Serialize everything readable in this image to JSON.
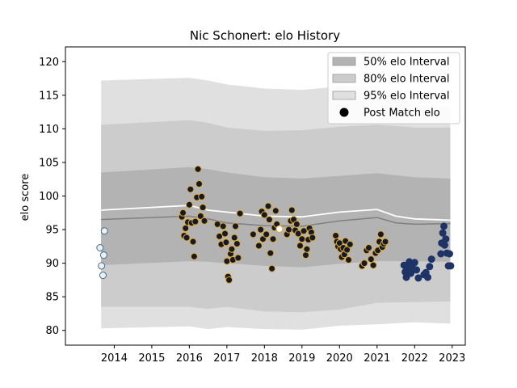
{
  "chart_data": {
    "type": "scatter",
    "title": "Nic Schonert: elo History",
    "xlabel": "",
    "ylabel": "elo score",
    "xlim": [
      2012.7,
      2023.35
    ],
    "ylim": [
      77.8,
      122.2
    ],
    "xticks": [
      2014,
      2015,
      2016,
      2017,
      2018,
      2019,
      2020,
      2021,
      2022,
      2023
    ],
    "yticks": [
      80,
      85,
      90,
      95,
      100,
      105,
      110,
      115,
      120
    ],
    "grid": false,
    "legend_position": "top-right",
    "legend": [
      {
        "label": "50% elo Interval",
        "kind": "patch",
        "color": "#b3b3b3"
      },
      {
        "label": "80% elo Interval",
        "kind": "patch",
        "color": "#cccccc"
      },
      {
        "label": "95% elo Interval",
        "kind": "patch",
        "color": "#e0e0e0"
      },
      {
        "label": "Post Match elo",
        "kind": "marker",
        "color": "#000000"
      }
    ],
    "bands": {
      "x": [
        2013.65,
        2016.0,
        2016.5,
        2017.0,
        2018.0,
        2019.0,
        2020.0,
        2021.0,
        2022.0,
        2022.95
      ],
      "p95_upper": [
        117.2,
        117.6,
        117.2,
        116.6,
        116.0,
        115.8,
        116.3,
        116.4,
        113.5,
        113.2
      ],
      "p80_upper": [
        110.6,
        111.3,
        110.9,
        110.2,
        109.7,
        109.8,
        110.3,
        110.6,
        110.2,
        110.2
      ],
      "p50_upper": [
        103.5,
        104.3,
        104.0,
        103.5,
        102.8,
        102.6,
        103.0,
        103.4,
        102.8,
        102.6
      ],
      "p50_lower": [
        89.7,
        90.3,
        90.2,
        90.0,
        89.6,
        89.4,
        89.9,
        90.3,
        90.3,
        90.2
      ],
      "p80_lower": [
        83.5,
        83.5,
        83.2,
        83.5,
        82.8,
        82.7,
        83.1,
        84.1,
        84.2,
        84.3
      ],
      "p95_lower": [
        80.3,
        80.6,
        80.2,
        80.5,
        80.2,
        80.1,
        80.7,
        80.9,
        81.2,
        81.0
      ]
    },
    "median_line": {
      "x": [
        2013.65,
        2016.0,
        2016.5,
        2017.0,
        2018.0,
        2019.0,
        2020.0,
        2021.0,
        2021.5,
        2022.0,
        2022.95
      ],
      "y": [
        96.5,
        97.0,
        96.6,
        96.0,
        95.6,
        95.5,
        96.3,
        96.8,
        96.0,
        95.8,
        95.9
      ],
      "color": "#808080"
    },
    "mean_line": {
      "x": [
        2013.65,
        2016.0,
        2016.5,
        2017.0,
        2018.0,
        2019.0,
        2020.0,
        2021.0,
        2021.5,
        2022.0,
        2022.95
      ],
      "y": [
        97.9,
        98.6,
        97.9,
        97.6,
        97.0,
        96.9,
        97.6,
        98.0,
        97.0,
        96.6,
        96.4
      ],
      "color": "#ffffff"
    },
    "series": [
      {
        "color": "#e8f2f6",
        "edge": "#4a6c88",
        "points": [
          [
            2013.62,
            92.3
          ],
          [
            2013.66,
            89.6
          ],
          [
            2013.7,
            88.2
          ],
          [
            2013.72,
            91.2
          ],
          [
            2013.74,
            94.8
          ]
        ]
      },
      {
        "color": "#141a28",
        "edge": "#e3a830",
        "points": [
          [
            2015.8,
            96.9
          ],
          [
            2015.83,
            97.5
          ],
          [
            2015.86,
            94.1
          ],
          [
            2015.9,
            95.2
          ],
          [
            2015.93,
            93.8
          ],
          [
            2015.96,
            96.1
          ],
          [
            2016.0,
            98.7
          ],
          [
            2016.03,
            101.0
          ],
          [
            2016.06,
            96.0
          ],
          [
            2016.1,
            93.2
          ],
          [
            2016.13,
            91.0
          ],
          [
            2016.16,
            96.2
          ],
          [
            2016.2,
            99.8
          ],
          [
            2016.23,
            104.0
          ],
          [
            2016.26,
            101.8
          ],
          [
            2016.3,
            97.0
          ],
          [
            2016.33,
            99.9
          ],
          [
            2016.36,
            98.3
          ],
          [
            2016.4,
            96.3
          ],
          [
            2016.75,
            95.8
          ],
          [
            2016.8,
            94.0
          ],
          [
            2016.85,
            92.8
          ],
          [
            2016.9,
            95.5
          ],
          [
            2016.95,
            94.4
          ],
          [
            2016.98,
            93.1
          ],
          [
            2017.0,
            90.3
          ],
          [
            2017.03,
            88.0
          ],
          [
            2017.06,
            87.5
          ],
          [
            2017.1,
            91.4
          ],
          [
            2017.13,
            92.1
          ],
          [
            2017.16,
            90.5
          ],
          [
            2017.2,
            93.8
          ],
          [
            2017.23,
            95.5
          ],
          [
            2017.27,
            92.9
          ],
          [
            2017.3,
            90.8
          ],
          [
            2017.35,
            97.4
          ],
          [
            2017.7,
            94.3
          ],
          [
            2017.85,
            92.6
          ],
          [
            2017.9,
            95.0
          ],
          [
            2017.93,
            97.7
          ],
          [
            2017.96,
            93.6
          ],
          [
            2018.0,
            97.2
          ],
          [
            2018.05,
            94.3
          ],
          [
            2018.1,
            98.5
          ],
          [
            2018.13,
            96.5
          ],
          [
            2018.16,
            91.5
          ],
          [
            2018.2,
            89.2
          ],
          [
            2018.23,
            93.6
          ],
          [
            2018.27,
            95.3
          ],
          [
            2018.3,
            97.8
          ],
          [
            2018.33,
            95.8
          ],
          [
            2018.4,
            95.1
          ],
          [
            2018.6,
            94.3
          ],
          [
            2018.65,
            95.0
          ],
          [
            2018.7,
            96.3
          ],
          [
            2018.73,
            97.9
          ],
          [
            2018.78,
            96.5
          ],
          [
            2018.82,
            94.9
          ],
          [
            2018.86,
            95.8
          ],
          [
            2018.9,
            94.4
          ],
          [
            2018.95,
            92.6
          ],
          [
            2019.0,
            93.6
          ],
          [
            2019.05,
            94.8
          ],
          [
            2019.1,
            91.2
          ],
          [
            2019.13,
            92.1
          ],
          [
            2019.17,
            93.5
          ],
          [
            2019.2,
            95.2
          ],
          [
            2019.25,
            94.6
          ],
          [
            2019.28,
            93.8
          ],
          [
            2019.9,
            94.1
          ],
          [
            2019.93,
            93.2
          ],
          [
            2019.96,
            92.5
          ],
          [
            2020.0,
            93.0
          ],
          [
            2020.03,
            92.1
          ],
          [
            2020.06,
            90.9
          ],
          [
            2020.1,
            92.3
          ],
          [
            2020.13,
            91.3
          ],
          [
            2020.16,
            93.3
          ],
          [
            2020.2,
            92.0
          ],
          [
            2020.24,
            90.5
          ],
          [
            2020.28,
            92.8
          ],
          [
            2020.6,
            89.6
          ],
          [
            2020.66,
            90.0
          ],
          [
            2020.72,
            91.9
          ],
          [
            2020.78,
            92.3
          ],
          [
            2020.84,
            90.6
          ],
          [
            2020.9,
            89.7
          ],
          [
            2020.96,
            91.5
          ],
          [
            2021.02,
            91.9
          ],
          [
            2021.06,
            93.2
          ],
          [
            2021.1,
            94.3
          ],
          [
            2021.14,
            92.4
          ],
          [
            2021.18,
            92.9
          ],
          [
            2021.22,
            93.2
          ]
        ]
      },
      {
        "color": "#1e3366",
        "edge": "#1e3366",
        "points": [
          [
            2021.72,
            89.7
          ],
          [
            2021.75,
            88.7
          ],
          [
            2021.78,
            87.9
          ],
          [
            2021.8,
            89.0
          ],
          [
            2021.83,
            89.3
          ],
          [
            2021.86,
            90.2
          ],
          [
            2021.9,
            88.5
          ],
          [
            2021.93,
            89.8
          ],
          [
            2021.97,
            89.1
          ],
          [
            2022.0,
            90.1
          ],
          [
            2022.05,
            89.0
          ],
          [
            2022.1,
            87.8
          ],
          [
            2022.25,
            88.3
          ],
          [
            2022.3,
            88.6
          ],
          [
            2022.35,
            87.9
          ],
          [
            2022.4,
            89.5
          ],
          [
            2022.45,
            90.6
          ],
          [
            2022.7,
            91.4
          ],
          [
            2022.72,
            93.0
          ],
          [
            2022.75,
            94.5
          ],
          [
            2022.78,
            95.5
          ],
          [
            2022.8,
            92.7
          ],
          [
            2022.83,
            93.6
          ],
          [
            2022.86,
            91.5
          ],
          [
            2022.9,
            89.6
          ],
          [
            2022.93,
            91.4
          ],
          [
            2022.96,
            89.6
          ]
        ]
      }
    ],
    "highlight_point": {
      "x": 2018.4,
      "y": 95.1,
      "color": "#ffffff",
      "edge": "#e3a830"
    }
  }
}
